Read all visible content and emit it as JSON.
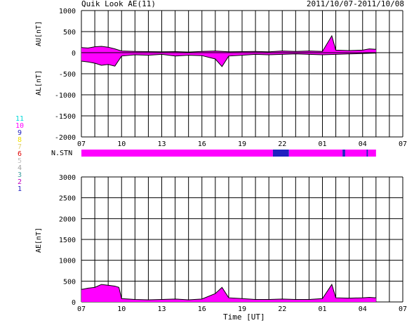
{
  "header": {
    "title": "Quik Look AE(11)",
    "date_range": "2011/10/07-2011/10/08"
  },
  "labels": {
    "au": "AU[nT]",
    "al": "AL[nT]",
    "ae": "AE[nT]",
    "nstn": "N.STN",
    "x_axis": "Time [UT]"
  },
  "station_legend": [
    {
      "label": "11",
      "color": "#00d8d8"
    },
    {
      "label": "10",
      "color": "#ff00ff"
    },
    {
      "label": "9",
      "color": "#2020c0"
    },
    {
      "label": "8",
      "color": "#f0e000"
    },
    {
      "label": "7",
      "color": "#e0d070"
    },
    {
      "label": "6",
      "color": "#e00000"
    },
    {
      "label": "5",
      "color": "#c0c0c0"
    },
    {
      "label": "4",
      "color": "#a0a0a0"
    },
    {
      "label": "3",
      "color": "#40a0a0"
    },
    {
      "label": "2",
      "color": "#c000c0"
    },
    {
      "label": "1",
      "color": "#2020c0"
    }
  ],
  "colors": {
    "magenta": "#ff00ff",
    "blue": "#2020e0",
    "trace": "#000000",
    "grid": "#000000"
  },
  "chart_data": [
    {
      "type": "area",
      "name": "AU/AL",
      "xlabel": "",
      "ylabel": "AU[nT] / AL[nT]",
      "ylim": [
        -2000,
        1000
      ],
      "yticks": [
        1000,
        500,
        0,
        -500,
        -1000,
        -1500,
        -2000
      ],
      "xticks": [
        "07",
        "10",
        "13",
        "16",
        "19",
        "22",
        "01",
        "04",
        "07"
      ],
      "x_unit": "hours from 07 UT 2011/10/07",
      "xlim": [
        0,
        24
      ],
      "data_end_hour": 22,
      "series": [
        {
          "name": "AU",
          "x": [
            0,
            0.5,
            1,
            1.5,
            2,
            2.5,
            3,
            4,
            5,
            6,
            7,
            8,
            9,
            10,
            11,
            12,
            13,
            14,
            15,
            16,
            17,
            18,
            18.7,
            19,
            20,
            21,
            21.5,
            22
          ],
          "values": [
            120,
            110,
            140,
            150,
            130,
            90,
            40,
            30,
            25,
            20,
            25,
            15,
            30,
            40,
            20,
            25,
            30,
            20,
            40,
            30,
            40,
            30,
            400,
            60,
            50,
            60,
            90,
            80
          ]
        },
        {
          "name": "AL",
          "x": [
            0,
            0.5,
            1,
            1.5,
            2,
            2.5,
            3,
            4,
            5,
            6,
            7,
            8,
            9,
            10,
            10.5,
            11,
            12,
            13,
            14,
            15,
            16,
            17,
            18,
            19,
            20,
            21,
            21.5,
            22
          ],
          "values": [
            -200,
            -220,
            -250,
            -300,
            -280,
            -320,
            -80,
            -50,
            -60,
            -40,
            -80,
            -60,
            -70,
            -150,
            -330,
            -80,
            -60,
            -40,
            -50,
            -40,
            -30,
            -40,
            -50,
            -40,
            -30,
            -20,
            -15,
            -10
          ]
        }
      ]
    },
    {
      "type": "bar",
      "name": "N.STN",
      "ylabel": "N.STN",
      "segments": [
        {
          "from_hour": 0,
          "to_hour": 14.3,
          "stations": 10
        },
        {
          "from_hour": 14.3,
          "to_hour": 15.5,
          "stations": 9
        },
        {
          "from_hour": 15.5,
          "to_hour": 19.5,
          "stations": 10
        },
        {
          "from_hour": 19.5,
          "to_hour": 19.7,
          "stations": 9
        },
        {
          "from_hour": 19.7,
          "to_hour": 21.3,
          "stations": 10
        },
        {
          "from_hour": 21.3,
          "to_hour": 21.4,
          "stations": 9
        },
        {
          "from_hour": 21.4,
          "to_hour": 22,
          "stations": 10
        }
      ]
    },
    {
      "type": "area",
      "name": "AE",
      "xlabel": "Time [UT]",
      "ylabel": "AE[nT]",
      "ylim": [
        0,
        3000
      ],
      "yticks": [
        3000,
        2500,
        2000,
        1500,
        1000,
        500,
        0
      ],
      "xticks": [
        "07",
        "10",
        "13",
        "16",
        "19",
        "22",
        "01",
        "04",
        "07"
      ],
      "x_unit": "hours from 07 UT 2011/10/07",
      "xlim": [
        0,
        24
      ],
      "series": [
        {
          "name": "AE",
          "x": [
            0,
            0.5,
            1,
            1.5,
            2,
            2.5,
            2.8,
            3,
            4,
            5,
            6,
            7,
            8,
            9,
            10,
            10.5,
            11,
            12,
            13,
            14,
            15,
            16,
            17,
            18,
            18.7,
            19,
            20,
            21,
            21.5,
            22
          ],
          "values": [
            300,
            330,
            350,
            420,
            400,
            380,
            350,
            80,
            60,
            50,
            60,
            70,
            50,
            70,
            200,
            350,
            100,
            80,
            60,
            60,
            70,
            60,
            60,
            80,
            420,
            100,
            90,
            100,
            110,
            100
          ]
        }
      ]
    }
  ]
}
